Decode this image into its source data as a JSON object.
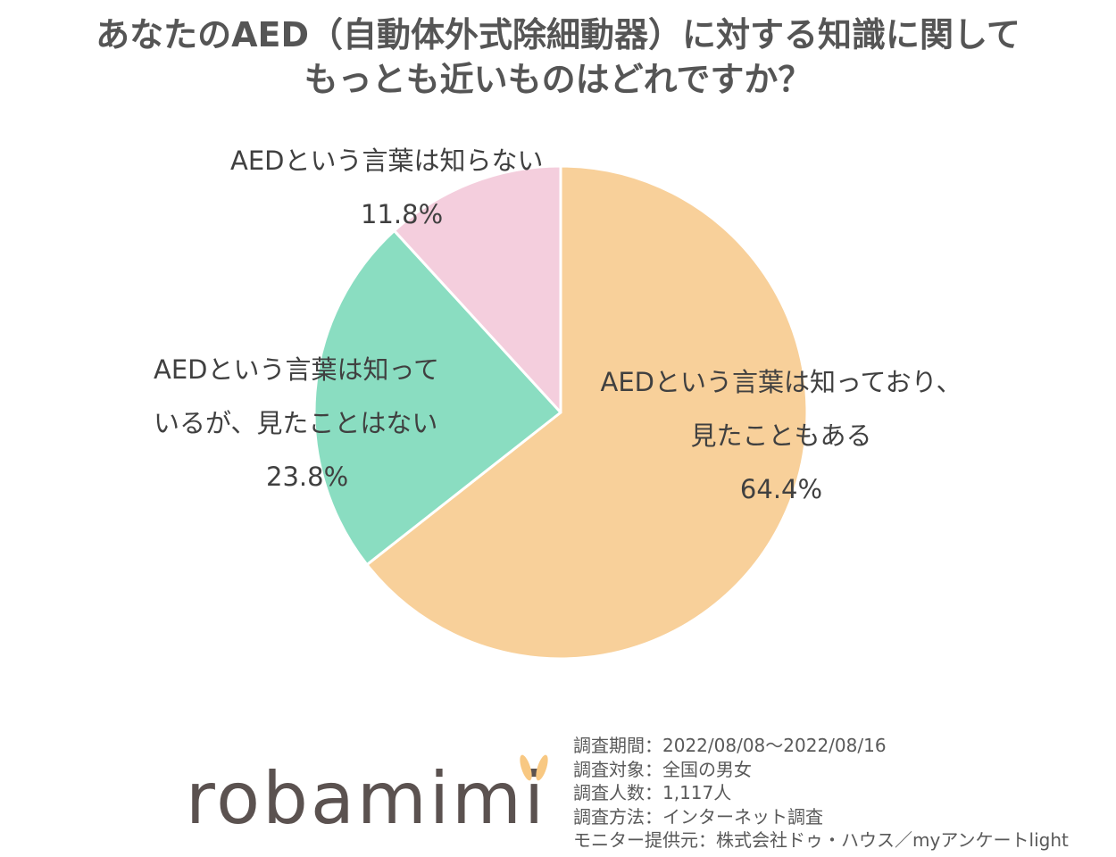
{
  "title": {
    "line1": "あなたのAED（自動体外式除細動器）に対する知識に関して",
    "line2": "もっとも近いものはどれですか？"
  },
  "chart_data": {
    "type": "pie",
    "start": "12 o'clock",
    "direction": "clockwise",
    "slices": [
      {
        "label_lines": [
          "AEDという言葉は知っており、",
          "見たこともある"
        ],
        "value": 64.4,
        "value_label": "64.4%",
        "color": "#F8D09A"
      },
      {
        "label_lines": [
          "AEDという言葉は知って",
          "いるが、見たことはない"
        ],
        "value": 23.8,
        "value_label": "23.8%",
        "color": "#8ADDC1"
      },
      {
        "label_lines": [
          "AEDという言葉は知らない"
        ],
        "value": 11.8,
        "value_label": "11.8%",
        "color": "#F4CEDD"
      }
    ]
  },
  "logo": {
    "text": "robamimi",
    "ears_color": "#F8C882"
  },
  "survey_info": [
    "調査期間：2022/08/08～2022/08/16",
    "調査対象：全国の男女",
    "調査人数：1,117人",
    "調査方法：インターネット調査",
    "モニター提供元：株式会社ドゥ・ハウス／myアンケートlight"
  ]
}
